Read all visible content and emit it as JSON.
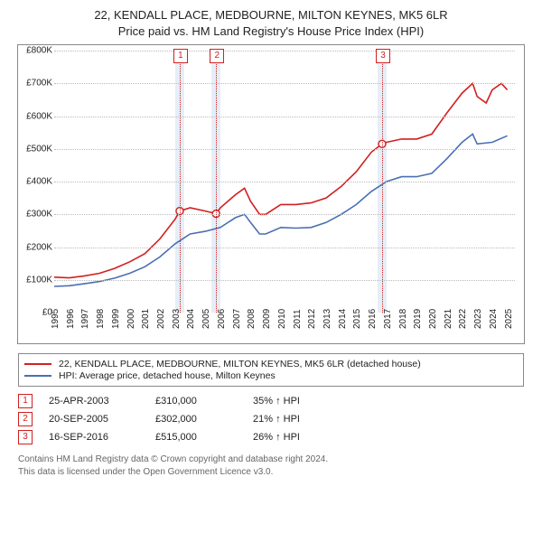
{
  "title_line1": "22, KENDALL PLACE, MEDBOURNE, MILTON KEYNES, MK5 6LR",
  "title_line2": "Price paid vs. HM Land Registry's House Price Index (HPI)",
  "chart": {
    "type": "line",
    "xlim": [
      1995,
      2025.5
    ],
    "ylim": [
      0,
      800000
    ],
    "ytick_step": 100000,
    "yticks": [
      "£0",
      "£100K",
      "£200K",
      "£300K",
      "£400K",
      "£500K",
      "£600K",
      "£700K",
      "£800K"
    ],
    "xticks": [
      1995,
      1996,
      1997,
      1998,
      1999,
      2000,
      2001,
      2002,
      2003,
      2004,
      2005,
      2006,
      2007,
      2008,
      2009,
      2010,
      2011,
      2012,
      2013,
      2014,
      2015,
      2016,
      2017,
      2018,
      2019,
      2020,
      2021,
      2022,
      2023,
      2024,
      2025
    ],
    "grid_color": "#bbbbbb",
    "background_color": "#ffffff",
    "band_color": "#dbe7f3",
    "colors": {
      "property": "#d21f1f",
      "hpi": "#4a6fb3"
    },
    "series": {
      "property": [
        [
          1995,
          108000
        ],
        [
          1996,
          106000
        ],
        [
          1997,
          112000
        ],
        [
          1998,
          120000
        ],
        [
          1999,
          135000
        ],
        [
          2000,
          155000
        ],
        [
          2001,
          180000
        ],
        [
          2002,
          225000
        ],
        [
          2003,
          285000
        ],
        [
          2003.31,
          310000
        ],
        [
          2004,
          320000
        ],
        [
          2005,
          310000
        ],
        [
          2005.72,
          302000
        ],
        [
          2006,
          320000
        ],
        [
          2007,
          360000
        ],
        [
          2007.6,
          380000
        ],
        [
          2008,
          340000
        ],
        [
          2008.6,
          300000
        ],
        [
          2009,
          300000
        ],
        [
          2010,
          330000
        ],
        [
          2011,
          330000
        ],
        [
          2012,
          335000
        ],
        [
          2013,
          350000
        ],
        [
          2014,
          385000
        ],
        [
          2015,
          430000
        ],
        [
          2016,
          490000
        ],
        [
          2016.71,
          515000
        ],
        [
          2017,
          520000
        ],
        [
          2018,
          530000
        ],
        [
          2019,
          530000
        ],
        [
          2020,
          545000
        ],
        [
          2021,
          610000
        ],
        [
          2022,
          670000
        ],
        [
          2022.7,
          700000
        ],
        [
          2023,
          660000
        ],
        [
          2023.6,
          640000
        ],
        [
          2024,
          680000
        ],
        [
          2024.6,
          700000
        ],
        [
          2025,
          680000
        ]
      ],
      "hpi": [
        [
          1995,
          80000
        ],
        [
          1996,
          82000
        ],
        [
          1997,
          88000
        ],
        [
          1998,
          95000
        ],
        [
          1999,
          105000
        ],
        [
          2000,
          120000
        ],
        [
          2001,
          140000
        ],
        [
          2002,
          170000
        ],
        [
          2003,
          210000
        ],
        [
          2004,
          240000
        ],
        [
          2005,
          248000
        ],
        [
          2006,
          260000
        ],
        [
          2007,
          290000
        ],
        [
          2007.6,
          300000
        ],
        [
          2008,
          275000
        ],
        [
          2008.6,
          240000
        ],
        [
          2009,
          240000
        ],
        [
          2010,
          260000
        ],
        [
          2011,
          258000
        ],
        [
          2012,
          260000
        ],
        [
          2013,
          275000
        ],
        [
          2014,
          300000
        ],
        [
          2015,
          330000
        ],
        [
          2016,
          370000
        ],
        [
          2017,
          400000
        ],
        [
          2018,
          415000
        ],
        [
          2019,
          415000
        ],
        [
          2020,
          425000
        ],
        [
          2021,
          470000
        ],
        [
          2022,
          520000
        ],
        [
          2022.7,
          545000
        ],
        [
          2023,
          515000
        ],
        [
          2024,
          520000
        ],
        [
          2025,
          540000
        ]
      ]
    },
    "sales": [
      {
        "n": "1",
        "year": 2003.31,
        "price": 310000
      },
      {
        "n": "2",
        "year": 2005.72,
        "price": 302000
      },
      {
        "n": "3",
        "year": 2016.71,
        "price": 515000
      }
    ]
  },
  "legend": {
    "items": [
      {
        "color": "#d21f1f",
        "label": "22, KENDALL PLACE, MEDBOURNE, MILTON KEYNES, MK5 6LR (detached house)"
      },
      {
        "color": "#4a6fb3",
        "label": "HPI: Average price, detached house, Milton Keynes"
      }
    ]
  },
  "events": [
    {
      "n": "1",
      "date": "25-APR-2003",
      "price": "£310,000",
      "delta": "35% ↑ HPI",
      "color": "#d21f1f"
    },
    {
      "n": "2",
      "date": "20-SEP-2005",
      "price": "£302,000",
      "delta": "21% ↑ HPI",
      "color": "#d21f1f"
    },
    {
      "n": "3",
      "date": "16-SEP-2016",
      "price": "£515,000",
      "delta": "26% ↑ HPI",
      "color": "#d21f1f"
    }
  ],
  "footnote_line1": "Contains HM Land Registry data © Crown copyright and database right 2024.",
  "footnote_line2": "This data is licensed under the Open Government Licence v3.0."
}
